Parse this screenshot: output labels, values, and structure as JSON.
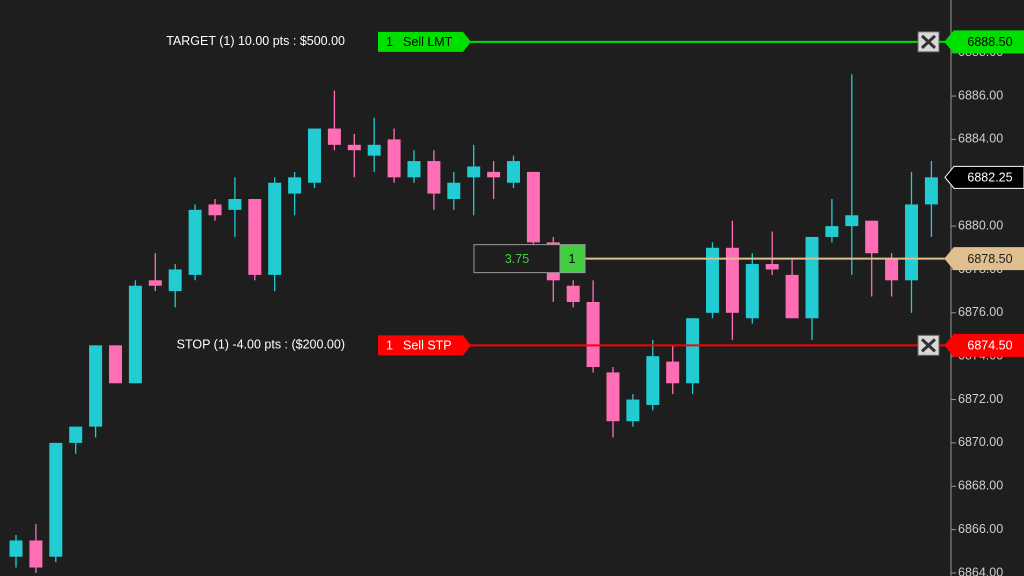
{
  "chart_data": {
    "type": "candlestick",
    "series": [
      {
        "up_color": "#21cdd2",
        "down_color": "#ff6eb4",
        "open": [
          6864.75,
          6865.5,
          6864.75,
          6870.0,
          6870.75,
          6874.5,
          6872.75,
          6877.5,
          6877.0,
          6877.75,
          6881.0,
          6880.75,
          6881.25,
          6877.75,
          6881.5,
          6882.0,
          6884.5,
          6883.75,
          6883.25,
          6884.0,
          6882.25,
          6883.0,
          6881.25,
          6882.25,
          6882.5,
          6882.0,
          6882.5,
          6879.25,
          6877.25,
          6876.5,
          6873.25,
          6871.0,
          6871.75,
          6873.75,
          6872.75,
          6876.0,
          6879.0,
          6875.75,
          6878.25,
          6877.75,
          6875.75,
          6879.5,
          6880.0,
          6880.25,
          6878.5,
          6877.5,
          6881.0
        ],
        "high": [
          6865.75,
          6866.25,
          6870.0,
          6870.75,
          6874.5,
          6874.5,
          6877.5,
          6878.75,
          6878.25,
          6881.0,
          6881.25,
          6882.25,
          6881.25,
          6882.25,
          6882.5,
          6884.5,
          6886.25,
          6884.25,
          6885.0,
          6884.5,
          6883.5,
          6883.5,
          6882.5,
          6883.75,
          6883.0,
          6883.25,
          6882.5,
          6879.5,
          6877.5,
          6877.5,
          6873.5,
          6872.25,
          6874.75,
          6874.5,
          6875.75,
          6879.25,
          6880.25,
          6878.75,
          6879.75,
          6878.5,
          6879.5,
          6881.25,
          6887.0,
          6880.25,
          6878.75,
          6882.5,
          6883.0
        ],
        "low": [
          6864.25,
          6864.0,
          6864.5,
          6869.5,
          6870.25,
          6872.75,
          6872.75,
          6877.0,
          6876.25,
          6877.5,
          6880.25,
          6879.5,
          6877.5,
          6877.0,
          6880.5,
          6881.75,
          6883.5,
          6882.25,
          6882.5,
          6882.0,
          6882.0,
          6880.75,
          6880.75,
          6880.5,
          6881.25,
          6881.75,
          6879.0,
          6876.5,
          6876.25,
          6873.25,
          6870.25,
          6870.75,
          6871.5,
          6872.25,
          6872.25,
          6875.75,
          6874.75,
          6875.5,
          6877.75,
          6875.75,
          6874.75,
          6879.25,
          6877.75,
          6876.75,
          6876.75,
          6876.0,
          6879.5
        ],
        "close": [
          6865.5,
          6864.25,
          6870.0,
          6870.75,
          6874.5,
          6872.75,
          6877.25,
          6877.25,
          6878.0,
          6880.75,
          6880.5,
          6881.25,
          6877.75,
          6882.0,
          6882.25,
          6884.5,
          6883.75,
          6883.5,
          6883.75,
          6882.25,
          6883.0,
          6881.5,
          6882.0,
          6882.75,
          6882.25,
          6883.0,
          6879.25,
          6877.5,
          6876.5,
          6873.5,
          6871.0,
          6872.0,
          6874.0,
          6872.75,
          6875.75,
          6879.0,
          6876.0,
          6878.25,
          6878.0,
          6875.75,
          6879.5,
          6880.0,
          6880.5,
          6878.75,
          6877.5,
          6881.0,
          6882.25
        ]
      }
    ],
    "ylim": [
      6863.86,
      6890.43
    ],
    "yticks": [
      {
        "value": 6864,
        "label": "6864.00"
      },
      {
        "value": 6866,
        "label": "6866.00"
      },
      {
        "value": 6868,
        "label": "6868.00"
      },
      {
        "value": 6870,
        "label": "6870.00"
      },
      {
        "value": 6872,
        "label": "6872.00"
      },
      {
        "value": 6874,
        "label": "6874.00"
      },
      {
        "value": 6876,
        "label": "6876.00"
      },
      {
        "value": 6878,
        "label": "6878.00"
      },
      {
        "value": 6880,
        "label": "6880.00"
      },
      {
        "value": 6882,
        "label": "6882.00"
      },
      {
        "value": 6884,
        "label": "6884.00"
      },
      {
        "value": 6886,
        "label": "6886.00"
      },
      {
        "value": 6888,
        "label": "6888.00"
      }
    ],
    "orders": [
      {
        "text": "TARGET (1) 10.00 pts : $500.00",
        "quantity": 1,
        "action": "Sell LMT",
        "price": {
          "value": 6888.5,
          "label": "6888.50"
        },
        "color": "#00e000",
        "text_color": "#000000"
      },
      {
        "text": "STOP (1) -4.00 pts : ($200.00)",
        "quantity": 1,
        "action": "Sell STP",
        "price": {
          "value": 6874.5,
          "label": "6874.50"
        },
        "color": "#ff0000",
        "text_color": "#ffffff"
      }
    ],
    "position": {
      "pnl": 3.75,
      "quantity": 1,
      "price": {
        "value": 6878.5,
        "label": "6878.50"
      },
      "color": "#e0be8e"
    },
    "last_price": {
      "value": 6882.25,
      "label": "6882.25"
    }
  }
}
